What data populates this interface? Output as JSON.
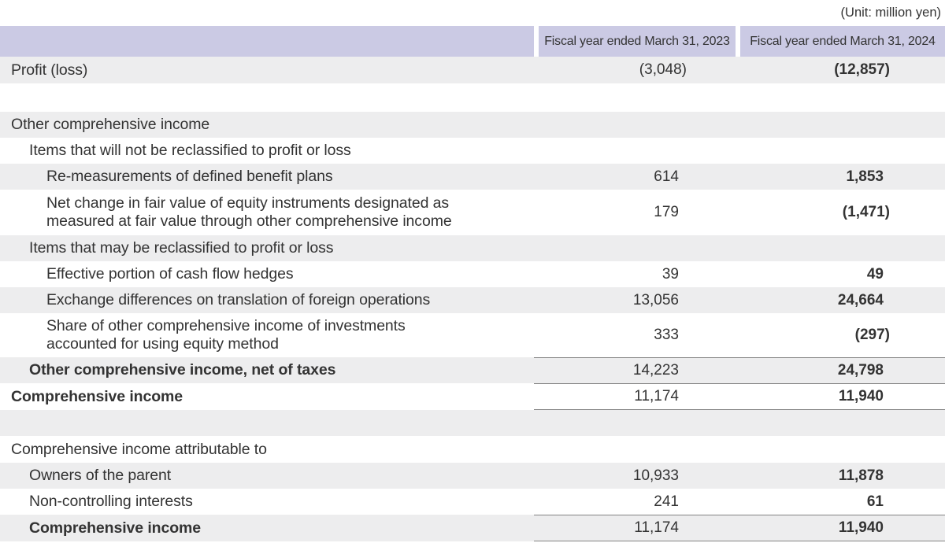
{
  "unit_note": "(Unit: million yen)",
  "table": {
    "columns": [
      "",
      "Fiscal year ended March 31, 2023",
      "Fiscal year ended March 31, 2024"
    ],
    "rows": [
      {
        "label": "Profit (loss)",
        "fy2023": "(3,048)",
        "fy2024": "(12,857)"
      },
      {
        "label": "",
        "fy2023": "",
        "fy2024": ""
      },
      {
        "label": "Other comprehensive income",
        "fy2023": "",
        "fy2024": ""
      },
      {
        "label": "Items that will not be reclassified to profit or loss",
        "fy2023": "",
        "fy2024": ""
      },
      {
        "label": "Re-measurements of defined benefit plans",
        "fy2023": "614",
        "fy2024": "1,853"
      },
      {
        "label": "Net change in fair value of equity instruments designated as\nmeasured at fair value through other comprehensive income",
        "fy2023": "179",
        "fy2024": "(1,471)"
      },
      {
        "label": "Items that may be reclassified to profit or loss",
        "fy2023": "",
        "fy2024": ""
      },
      {
        "label": "Effective portion of cash flow hedges",
        "fy2023": "39",
        "fy2024": "49"
      },
      {
        "label": "Exchange differences on translation of foreign operations",
        "fy2023": "13,056",
        "fy2024": "24,664"
      },
      {
        "label": "Share of other comprehensive income of investments\naccounted for using equity method",
        "fy2023": "333",
        "fy2024": "(297)"
      },
      {
        "label": "Other comprehensive income, net of taxes",
        "fy2023": "14,223",
        "fy2024": "24,798"
      },
      {
        "label": "Comprehensive income",
        "fy2023": "11,174",
        "fy2024": "11,940"
      },
      {
        "label": "",
        "fy2023": "",
        "fy2024": ""
      },
      {
        "label": "Comprehensive income attributable to",
        "fy2023": "",
        "fy2024": ""
      },
      {
        "label": "Owners of the parent",
        "fy2023": "10,933",
        "fy2024": "11,878"
      },
      {
        "label": "Non-controlling interests",
        "fy2023": "241",
        "fy2024": "61"
      },
      {
        "label": "Comprehensive income",
        "fy2023": "11,174",
        "fy2024": "11,940"
      }
    ]
  }
}
